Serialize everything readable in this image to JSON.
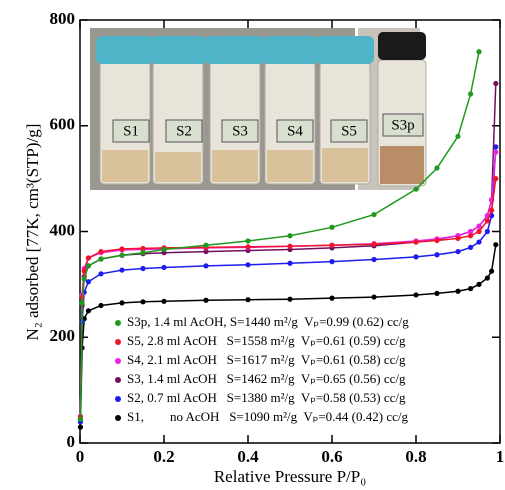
{
  "chart_data": {
    "type": "line",
    "xlabel": "Relative Pressure P/P₀",
    "ylabel": "N₂ adsorbed [77K, cm³(STP)/g]",
    "xlim": [
      0,
      1
    ],
    "ylim": [
      0,
      800
    ],
    "xticks": [
      0,
      0.2,
      0.4,
      0.6,
      0.8,
      1
    ],
    "yticks": [
      0,
      200,
      400,
      600,
      800
    ],
    "x": [
      0.001,
      0.005,
      0.01,
      0.02,
      0.05,
      0.1,
      0.15,
      0.2,
      0.3,
      0.4,
      0.5,
      0.6,
      0.7,
      0.8,
      0.85,
      0.9,
      0.93,
      0.95,
      0.97,
      0.98,
      0.99
    ],
    "series": [
      {
        "name": "S3p, 1.4 ml AcOH, S=1440 m²/g  Vₚ=0.99 (0.62) cc/g",
        "color": "#1e9a1e",
        "values": [
          45,
          265,
          310,
          335,
          348,
          355,
          360,
          366,
          374,
          382,
          392,
          408,
          432,
          480,
          520,
          580,
          660,
          740,
          null,
          null,
          null
        ]
      },
      {
        "name": "S5, 2.8 ml AcOH   S=1558 m²/g  Vₚ=0.61 (0.59) cc/g",
        "color": "#f0142a",
        "values": [
          50,
          275,
          325,
          350,
          362,
          367,
          368,
          369,
          370,
          371,
          372,
          374,
          376,
          380,
          383,
          387,
          392,
          400,
          420,
          440,
          500
        ]
      },
      {
        "name": "S4, 2.1 ml AcOH   S=1617 m²/g  Vₚ=0.61 (0.58) cc/g",
        "color": "#f020e8",
        "values": [
          50,
          280,
          330,
          350,
          360,
          365,
          366,
          367,
          369,
          370,
          372,
          374,
          377,
          382,
          386,
          392,
          400,
          410,
          430,
          460,
          550
        ]
      },
      {
        "name": "S3, 1.4 ml AcOH   S=1462 m²/g  Vₚ=0.65 (0.56) cc/g",
        "color": "#6e1060",
        "values": [
          45,
          260,
          315,
          335,
          348,
          355,
          358,
          360,
          362,
          364,
          366,
          369,
          373,
          380,
          385,
          392,
          400,
          410,
          430,
          460,
          680
        ]
      },
      {
        "name": "S2, 0.7 ml AcOH   S=1380 m²/g  Vₚ=0.58 (0.53) cc/g",
        "color": "#1c1cf0",
        "values": [
          40,
          230,
          285,
          305,
          320,
          327,
          330,
          332,
          335,
          337,
          340,
          343,
          347,
          352,
          356,
          362,
          370,
          380,
          400,
          430,
          560
        ]
      },
      {
        "name": "S1,        no AcOH   S=1090 m²/g  Vₚ=0.44 (0.42) cc/g",
        "color": "#000000",
        "values": [
          30,
          180,
          235,
          250,
          260,
          265,
          267,
          268,
          270,
          271,
          272,
          274,
          276,
          280,
          283,
          287,
          292,
          300,
          312,
          325,
          375
        ]
      }
    ],
    "inset_labels": [
      "S1",
      "S2",
      "S3",
      "S4",
      "S5",
      "S3p"
    ]
  }
}
